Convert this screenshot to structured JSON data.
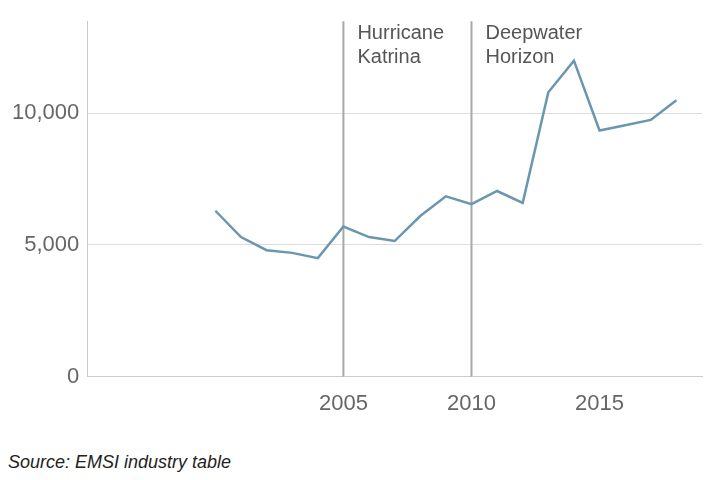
{
  "chart_data": {
    "type": "line",
    "x": [
      2000,
      2001,
      2002,
      2003,
      2004,
      2005,
      2006,
      2007,
      2008,
      2009,
      2010,
      2011,
      2012,
      2013,
      2014,
      2015,
      2016,
      2017,
      2018
    ],
    "values": [
      6300,
      5300,
      4800,
      4700,
      4500,
      5700,
      5300,
      5150,
      6100,
      6850,
      6550,
      7050,
      6600,
      10800,
      12000,
      9350,
      9550,
      9750,
      10500
    ],
    "color": "#6a96ae",
    "xlim": [
      1995,
      2019
    ],
    "xticks": [
      2005,
      2010,
      2015
    ],
    "ylim": [
      0,
      13500
    ],
    "yticks": [
      0,
      {
        "value": 5000,
        "label": "5,000"
      },
      {
        "value": 10000,
        "label": "10,000"
      }
    ],
    "grid": true,
    "annotations": [
      {
        "x": 2005,
        "text": "Hurricane\nKatrina"
      },
      {
        "x": 2010,
        "text": "Deepwater\nHorizon"
      }
    ],
    "source": "Source: EMSI industry table"
  }
}
